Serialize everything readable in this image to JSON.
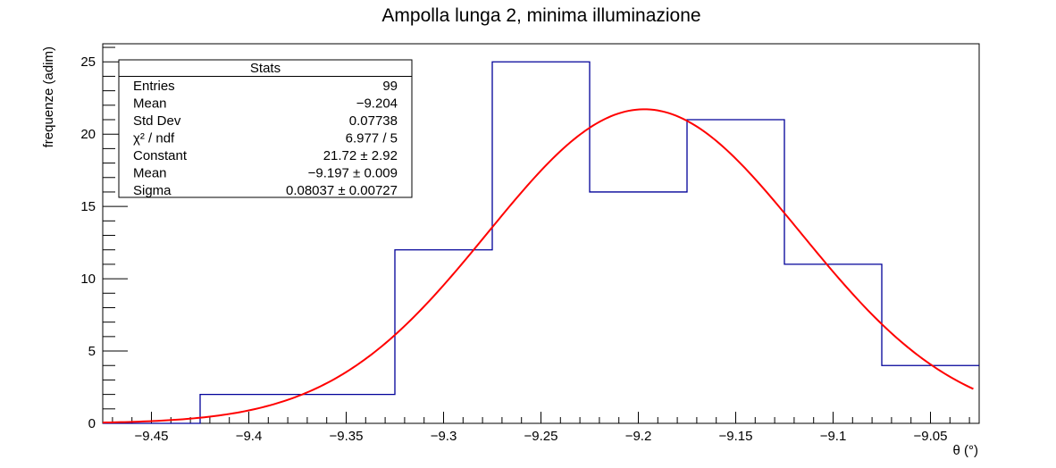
{
  "chart_data": {
    "type": "histogram",
    "title": "Ampolla lunga 2, minima illuminazione",
    "xlabel": "θ (°)",
    "ylabel": "frequenze (adim)",
    "xlim": [
      -9.475,
      -9.025
    ],
    "ylim": [
      0,
      26.25
    ],
    "xticks": [
      -9.45,
      -9.4,
      -9.35,
      -9.3,
      -9.25,
      -9.2,
      -9.15,
      -9.1,
      -9.05
    ],
    "xtick_labels": [
      "−9.45",
      "−9.4",
      "−9.35",
      "−9.3",
      "−9.25",
      "−9.2",
      "−9.15",
      "−9.1",
      "−9.05"
    ],
    "yticks": [
      0,
      5,
      10,
      15,
      20,
      25
    ],
    "ytick_labels": [
      "0",
      "5",
      "10",
      "15",
      "20",
      "25"
    ],
    "bins": [
      {
        "lo": -9.475,
        "hi": -9.425,
        "count": 0
      },
      {
        "lo": -9.425,
        "hi": -9.375,
        "count": 2
      },
      {
        "lo": -9.375,
        "hi": -9.325,
        "count": 2
      },
      {
        "lo": -9.325,
        "hi": -9.275,
        "count": 12
      },
      {
        "lo": -9.275,
        "hi": -9.225,
        "count": 25
      },
      {
        "lo": -9.225,
        "hi": -9.175,
        "count": 16
      },
      {
        "lo": -9.175,
        "hi": -9.125,
        "count": 21
      },
      {
        "lo": -9.125,
        "hi": -9.075,
        "count": 11
      },
      {
        "lo": -9.075,
        "hi": -9.025,
        "count": 4
      }
    ],
    "fit": {
      "type": "gaussian",
      "constant": 21.72,
      "mean": -9.197,
      "sigma": 0.08037,
      "x_range": [
        -9.475,
        -9.028
      ],
      "color": "#ff0000"
    },
    "histogram_color": "#000099"
  },
  "stats": {
    "title": "Stats",
    "rows": [
      {
        "label": "Entries",
        "value": "99"
      },
      {
        "label": "Mean",
        "value": "−9.204"
      },
      {
        "label": "Std Dev",
        "value": "0.07738"
      },
      {
        "label": "χ² / ndf",
        "value": "6.977 / 5"
      },
      {
        "label": "Constant",
        "value": "21.72 ± 2.92"
      },
      {
        "label": "Mean",
        "value": "−9.197 ± 0.009"
      },
      {
        "label": "Sigma",
        "value": "0.08037 ± 0.00727"
      }
    ]
  }
}
